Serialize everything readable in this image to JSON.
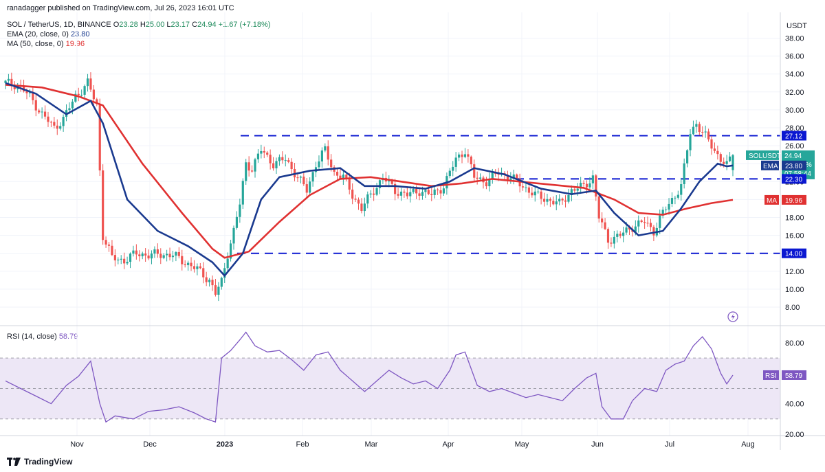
{
  "header": {
    "published": "ranadagger published on TradingView.com, Jul 26, 2023 16:01 UTC"
  },
  "legend": {
    "symbol": "SOL / TetherUS, 1D, BINANCE",
    "o_label": "O",
    "o": "23.28",
    "h_label": "H",
    "h": "25.00",
    "l_label": "L",
    "l": "23.17",
    "c_label": "C",
    "c": "24.94",
    "change": "+1.67 (+7.18%)",
    "ema_label": "EMA (20, close, 0)",
    "ema_value": "23.80",
    "ma_label": "MA (50, close, 0)",
    "ma_value": "19.96",
    "rsi_label": "RSI (14, close)",
    "rsi_value": "58.79"
  },
  "axis": {
    "currency": "USDT",
    "price_ticks": [
      "38.00",
      "36.00",
      "34.00",
      "32.00",
      "30.00",
      "28.00",
      "26.00",
      "24.00",
      "22.00",
      "20.00",
      "18.00",
      "16.00",
      "14.00",
      "12.00",
      "10.00",
      "8.00"
    ],
    "rsi_ticks": [
      "80.00",
      "60.00",
      "40.00",
      "20.00"
    ],
    "time_labels": [
      "Nov",
      "Dec",
      "2023",
      "Feb",
      "Mar",
      "Apr",
      "May",
      "Jun",
      "Jul",
      "Aug"
    ]
  },
  "price_tags": {
    "last_label": "SOLUSDT",
    "last_value": "24.94",
    "last_change": "−22.21%",
    "countdown": "07:58:44",
    "level_27": "27.12",
    "ema_tag": "EMA",
    "ema_value": "23.80",
    "level_22": "22.30",
    "ma_tag": "MA",
    "ma_value": "19.96",
    "level_14": "14.00",
    "rsi_tag": "RSI",
    "rsi_value": "58.79"
  },
  "footer": {
    "brand": "TradingView"
  },
  "colors": {
    "up": "#26a69a",
    "down": "#ef5350",
    "ema": "#1a3a8f",
    "ma": "#e03131",
    "rsi": "#7e57c2",
    "level": "#0b18d1",
    "rsi_band": "#ede7f6",
    "grid": "#f0f3fa"
  },
  "chart_data": [
    {
      "type": "candlestick",
      "title": "SOL / TetherUS, 1D, BINANCE",
      "ylim": [
        7,
        39
      ],
      "x": [
        "Nov",
        "Dec",
        "2023",
        "Feb",
        "Mar",
        "Apr",
        "May",
        "Jun",
        "Jul",
        "Aug"
      ],
      "horizontal_levels": [
        27.12,
        22.3,
        14.0
      ],
      "close_path": [
        [
          0,
          33.0
        ],
        [
          4,
          32.8
        ],
        [
          8,
          31.5
        ],
        [
          12,
          29.5
        ],
        [
          16,
          28.0
        ],
        [
          19,
          29.0
        ],
        [
          23,
          31.5
        ],
        [
          27,
          33.0
        ],
        [
          30,
          30.5
        ],
        [
          32,
          16.0
        ],
        [
          35,
          13.5
        ],
        [
          39,
          13.2
        ],
        [
          43,
          14.0
        ],
        [
          47,
          13.8
        ],
        [
          51,
          13.9
        ],
        [
          55,
          13.8
        ],
        [
          59,
          13.0
        ],
        [
          63,
          12.2
        ],
        [
          67,
          11.0
        ],
        [
          69,
          9.5
        ],
        [
          71,
          10.8
        ],
        [
          73,
          14.0
        ],
        [
          75,
          16.5
        ],
        [
          77,
          19.5
        ],
        [
          79,
          24.0
        ],
        [
          81,
          23.5
        ],
        [
          84,
          25.5
        ],
        [
          88,
          24.0
        ],
        [
          92,
          24.5
        ],
        [
          96,
          22.5
        ],
        [
          99,
          21.0
        ],
        [
          102,
          24.0
        ],
        [
          105,
          25.5
        ],
        [
          108,
          23.0
        ],
        [
          111,
          22.5
        ],
        [
          114,
          20.5
        ],
        [
          117,
          19.0
        ],
        [
          120,
          20.5
        ],
        [
          124,
          22.5
        ],
        [
          128,
          21.0
        ],
        [
          132,
          20.5
        ],
        [
          136,
          21.0
        ],
        [
          140,
          20.5
        ],
        [
          144,
          21.5
        ],
        [
          148,
          24.5
        ],
        [
          151,
          25.5
        ],
        [
          154,
          22.5
        ],
        [
          158,
          22.0
        ],
        [
          162,
          23.0
        ],
        [
          166,
          22.5
        ],
        [
          170,
          21.5
        ],
        [
          174,
          20.5
        ],
        [
          178,
          20.0
        ],
        [
          182,
          19.5
        ],
        [
          186,
          21.0
        ],
        [
          190,
          21.5
        ],
        [
          193,
          22.5
        ],
        [
          195,
          18.0
        ],
        [
          198,
          15.5
        ],
        [
          202,
          16.0
        ],
        [
          206,
          17.0
        ],
        [
          210,
          17.5
        ],
        [
          213,
          16.5
        ],
        [
          216,
          18.5
        ],
        [
          219,
          20.0
        ],
        [
          222,
          21.5
        ],
        [
          225,
          27.5
        ],
        [
          227,
          28.5
        ],
        [
          230,
          27.0
        ],
        [
          233,
          25.5
        ],
        [
          235,
          24.5
        ],
        [
          237,
          23.8
        ],
        [
          239,
          24.94
        ]
      ],
      "ema20_path": [
        [
          0,
          33.0
        ],
        [
          10,
          31.8
        ],
        [
          20,
          29.5
        ],
        [
          28,
          31.0
        ],
        [
          32,
          28.5
        ],
        [
          40,
          20.0
        ],
        [
          50,
          16.5
        ],
        [
          60,
          14.8
        ],
        [
          68,
          13.0
        ],
        [
          72,
          11.5
        ],
        [
          78,
          14.0
        ],
        [
          84,
          20.0
        ],
        [
          90,
          22.5
        ],
        [
          100,
          23.2
        ],
        [
          110,
          23.5
        ],
        [
          118,
          21.5
        ],
        [
          128,
          21.5
        ],
        [
          138,
          21.2
        ],
        [
          146,
          22.0
        ],
        [
          154,
          23.5
        ],
        [
          164,
          22.8
        ],
        [
          176,
          21.2
        ],
        [
          186,
          20.6
        ],
        [
          194,
          21.0
        ],
        [
          200,
          18.5
        ],
        [
          208,
          16.0
        ],
        [
          216,
          16.5
        ],
        [
          222,
          19.0
        ],
        [
          228,
          22.0
        ],
        [
          234,
          24.0
        ],
        [
          237,
          23.7
        ],
        [
          239,
          23.8
        ]
      ],
      "ma50_path": [
        [
          0,
          32.8
        ],
        [
          12,
          32.5
        ],
        [
          24,
          31.5
        ],
        [
          32,
          30.5
        ],
        [
          45,
          24.0
        ],
        [
          58,
          18.5
        ],
        [
          68,
          14.5
        ],
        [
          72,
          13.5
        ],
        [
          80,
          14.2
        ],
        [
          90,
          17.5
        ],
        [
          100,
          20.5
        ],
        [
          110,
          22.3
        ],
        [
          120,
          22.5
        ],
        [
          130,
          22.0
        ],
        [
          140,
          21.5
        ],
        [
          150,
          21.8
        ],
        [
          160,
          22.3
        ],
        [
          175,
          21.8
        ],
        [
          190,
          21.3
        ],
        [
          200,
          20.0
        ],
        [
          208,
          18.5
        ],
        [
          216,
          18.3
        ],
        [
          224,
          19.0
        ],
        [
          232,
          19.6
        ],
        [
          239,
          19.96
        ]
      ]
    },
    {
      "type": "line",
      "title": "RSI (14, close)",
      "ylim": [
        20,
        90
      ],
      "bands": [
        30,
        70
      ],
      "values": [
        [
          0,
          55
        ],
        [
          5,
          50
        ],
        [
          10,
          45
        ],
        [
          15,
          40
        ],
        [
          20,
          52
        ],
        [
          24,
          58
        ],
        [
          28,
          68
        ],
        [
          31,
          40
        ],
        [
          33,
          28
        ],
        [
          36,
          32
        ],
        [
          42,
          30
        ],
        [
          47,
          35
        ],
        [
          52,
          36
        ],
        [
          57,
          38
        ],
        [
          62,
          34
        ],
        [
          66,
          30
        ],
        [
          69,
          28
        ],
        [
          71,
          70
        ],
        [
          74,
          75
        ],
        [
          77,
          82
        ],
        [
          79,
          87
        ],
        [
          82,
          78
        ],
        [
          86,
          74
        ],
        [
          90,
          75
        ],
        [
          94,
          69
        ],
        [
          98,
          62
        ],
        [
          102,
          72
        ],
        [
          106,
          74
        ],
        [
          110,
          62
        ],
        [
          114,
          55
        ],
        [
          118,
          48
        ],
        [
          122,
          55
        ],
        [
          126,
          62
        ],
        [
          130,
          57
        ],
        [
          134,
          53
        ],
        [
          138,
          55
        ],
        [
          142,
          50
        ],
        [
          146,
          62
        ],
        [
          148,
          72
        ],
        [
          151,
          74
        ],
        [
          155,
          52
        ],
        [
          159,
          48
        ],
        [
          163,
          50
        ],
        [
          167,
          47
        ],
        [
          171,
          44
        ],
        [
          175,
          46
        ],
        [
          179,
          44
        ],
        [
          183,
          42
        ],
        [
          187,
          50
        ],
        [
          191,
          57
        ],
        [
          194,
          60
        ],
        [
          196,
          38
        ],
        [
          199,
          30
        ],
        [
          203,
          30
        ],
        [
          206,
          42
        ],
        [
          210,
          50
        ],
        [
          214,
          48
        ],
        [
          217,
          62
        ],
        [
          220,
          66
        ],
        [
          223,
          68
        ],
        [
          226,
          78
        ],
        [
          229,
          84
        ],
        [
          232,
          76
        ],
        [
          235,
          60
        ],
        [
          237,
          53
        ],
        [
          239,
          58.79
        ]
      ]
    }
  ]
}
